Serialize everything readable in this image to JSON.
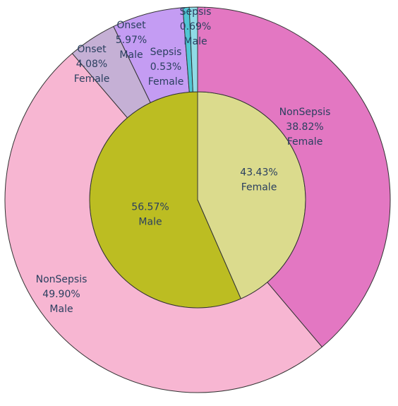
{
  "chart_data": {
    "type": "sunburst",
    "inner": [
      {
        "label": "Female",
        "value": 43.43,
        "value_label": "43.43%",
        "color": "#dbdb8d"
      },
      {
        "label": "Male",
        "value": 56.57,
        "value_label": "56.57%",
        "color": "#bcbd22"
      }
    ],
    "outer": [
      {
        "label": "NonSepsis",
        "parent": "Female",
        "value": 38.82,
        "value_label": "38.82%",
        "color": "#e377c2"
      },
      {
        "label": "NonSepsis",
        "parent": "Male",
        "value": 49.9,
        "value_label": "49.90%",
        "color": "#f7b6d2"
      },
      {
        "label": "Onset",
        "parent": "Female",
        "value": 4.08,
        "value_label": "4.08%",
        "color": "#c5b0d5"
      },
      {
        "label": "Onset",
        "parent": "Male",
        "value": 5.97,
        "value_label": "5.97%",
        "color": "#c49cf3"
      },
      {
        "label": "Sepsis",
        "parent": "Female",
        "value": 0.53,
        "value_label": "0.53%",
        "color": "#4fc7d4"
      },
      {
        "label": "Sepsis",
        "parent": "Male",
        "value": 0.69,
        "value_label": "0.69%",
        "color": "#8fdbe6"
      }
    ]
  }
}
